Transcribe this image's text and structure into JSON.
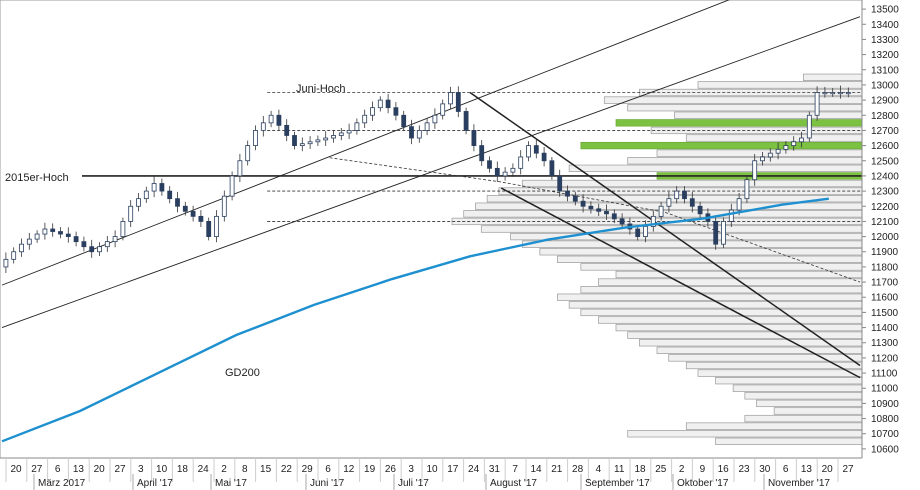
{
  "chart_data": {
    "type": "candlestick",
    "title": "",
    "y_range": [
      10540,
      13560
    ],
    "y_ticks": [
      10600,
      10700,
      10800,
      10900,
      11000,
      11100,
      11200,
      11300,
      11400,
      11500,
      11600,
      11700,
      11800,
      11900,
      12000,
      12100,
      12200,
      12300,
      12400,
      12500,
      12600,
      12700,
      12800,
      12900,
      13000,
      13100,
      13200,
      13300,
      13400,
      13500
    ],
    "x_day_labels": [
      "20",
      "27",
      "6",
      "13",
      "20",
      "27",
      "3",
      "10",
      "18",
      "24",
      "2",
      "8",
      "15",
      "22",
      "29",
      "6",
      "12",
      "19",
      "26",
      "3",
      "10",
      "17",
      "24",
      "31",
      "7",
      "14",
      "21",
      "28",
      "4",
      "11",
      "18",
      "25",
      "2",
      "9",
      "16",
      "23",
      "30",
      "6",
      "13",
      "20",
      "27"
    ],
    "x_month_labels": [
      "März 2017",
      "April '17",
      "Mai '17",
      "Juni '17",
      "Juli '17",
      "August '17",
      "September '17",
      "Oktober '17",
      "November '17"
    ],
    "annotations": {
      "juni_hoch": "Juni-Hoch",
      "hoch_2015": "2015er-Hoch",
      "gd200": "GD200"
    },
    "price_path": [
      [
        0,
        11800
      ],
      [
        3,
        11950
      ],
      [
        6,
        12050
      ],
      [
        9,
        12000
      ],
      [
        12,
        11900
      ],
      [
        15,
        12000
      ],
      [
        17,
        12200
      ],
      [
        20,
        12350
      ],
      [
        23,
        12200
      ],
      [
        26,
        12100
      ],
      [
        27,
        12000
      ],
      [
        30,
        12400
      ],
      [
        33,
        12700
      ],
      [
        35,
        12800
      ],
      [
        38,
        12600
      ],
      [
        42,
        12650
      ],
      [
        45,
        12700
      ],
      [
        49,
        12900
      ],
      [
        51,
        12800
      ],
      [
        53,
        12650
      ],
      [
        56,
        12800
      ],
      [
        58,
        12950
      ],
      [
        60,
        12700
      ],
      [
        62,
        12500
      ],
      [
        64,
        12400
      ],
      [
        66,
        12450
      ],
      [
        68,
        12600
      ],
      [
        70,
        12500
      ],
      [
        72,
        12300
      ],
      [
        75,
        12200
      ],
      [
        78,
        12150
      ],
      [
        81,
        12050
      ],
      [
        82,
        12000
      ],
      [
        85,
        12200
      ],
      [
        87,
        12300
      ],
      [
        89,
        12200
      ],
      [
        91,
        12100
      ],
      [
        92,
        11950
      ],
      [
        93,
        12100
      ],
      [
        95,
        12250
      ],
      [
        97,
        12500
      ],
      [
        99,
        12550
      ],
      [
        101,
        12600
      ],
      [
        103,
        12650
      ],
      [
        104,
        12800
      ],
      [
        105,
        12950
      ],
      [
        107,
        12950
      ],
      [
        109,
        12950
      ]
    ],
    "gd200_path": [
      [
        0,
        10650
      ],
      [
        10,
        10850
      ],
      [
        20,
        11100
      ],
      [
        30,
        11350
      ],
      [
        40,
        11550
      ],
      [
        50,
        11720
      ],
      [
        60,
        11870
      ],
      [
        70,
        11980
      ],
      [
        80,
        12060
      ],
      [
        90,
        12120
      ],
      [
        100,
        12210
      ],
      [
        106,
        12250
      ]
    ],
    "horizontal_levels": [
      12400
    ],
    "dashed_levels": [
      12950,
      12700,
      12300,
      12100
    ],
    "volume_profile": [
      [
        10650,
        25
      ],
      [
        10700,
        40
      ],
      [
        10750,
        30
      ],
      [
        10800,
        20
      ],
      [
        10850,
        15
      ],
      [
        10900,
        18
      ],
      [
        10950,
        20
      ],
      [
        11000,
        22
      ],
      [
        11050,
        25
      ],
      [
        11100,
        28
      ],
      [
        11150,
        30
      ],
      [
        11200,
        33
      ],
      [
        11250,
        35
      ],
      [
        11300,
        38
      ],
      [
        11350,
        40
      ],
      [
        11400,
        42
      ],
      [
        11450,
        45
      ],
      [
        11500,
        48
      ],
      [
        11550,
        50
      ],
      [
        11600,
        52
      ],
      [
        11650,
        48
      ],
      [
        11700,
        45
      ],
      [
        11750,
        42
      ],
      [
        11800,
        48
      ],
      [
        11850,
        52
      ],
      [
        11900,
        55
      ],
      [
        11950,
        58
      ],
      [
        12000,
        60
      ],
      [
        12050,
        65
      ],
      [
        12100,
        70
      ],
      [
        12150,
        68
      ],
      [
        12200,
        66
      ],
      [
        12250,
        64
      ],
      [
        12300,
        62
      ],
      [
        12350,
        58
      ],
      [
        12400,
        35
      ],
      [
        12450,
        50
      ],
      [
        12500,
        40
      ],
      [
        12550,
        35
      ],
      [
        12600,
        48
      ],
      [
        12650,
        30
      ],
      [
        12700,
        36
      ],
      [
        12750,
        42
      ],
      [
        12800,
        32
      ],
      [
        12850,
        40
      ],
      [
        12900,
        44
      ],
      [
        12950,
        38
      ],
      [
        13000,
        28
      ],
      [
        13050,
        10
      ]
    ],
    "highlight_bars": [
      12750,
      12600,
      12400
    ]
  }
}
